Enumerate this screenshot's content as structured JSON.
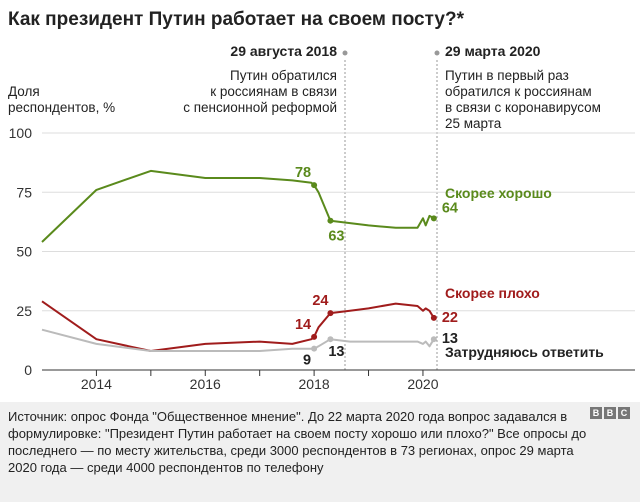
{
  "title": "Как президент Путин работает на своем посту?*",
  "ylabel_lines": [
    "Доля",
    "респондентов, %"
  ],
  "annotations": [
    {
      "date": "29 августа 2018",
      "lines": [
        "Путин обратился",
        "к россиянам в связи",
        "с пенсионной реформой"
      ]
    },
    {
      "date": "29 марта 2020",
      "lines": [
        "Путин в первый раз",
        "обратился к россиянам",
        "в связи с коронавирусом",
        "25 марта"
      ]
    }
  ],
  "chart_data": {
    "type": "line",
    "title": "Как президент Путин работает на своем посту?*",
    "ylabel": "Доля респондентов, %",
    "ylim": [
      0,
      100
    ],
    "yticks": [
      0,
      25,
      50,
      75,
      100
    ],
    "xlim": [
      2013.0,
      2020.35
    ],
    "xticks": [
      {
        "value": 2014,
        "label": "2014"
      },
      {
        "value": 2016,
        "label": "2016"
      },
      {
        "value": 2018,
        "label": "2018"
      },
      {
        "value": 2020,
        "label": "2020"
      }
    ],
    "grid": "horizontal",
    "legend": "series labels at right end",
    "series": [
      {
        "name": "Скорее хорошо",
        "color": "#5a8a1c",
        "x": [
          2013.0,
          2014.0,
          2015.0,
          2016.0,
          2017.0,
          2017.6,
          2017.95,
          2018.0,
          2018.08,
          2018.3,
          2018.66,
          2019.0,
          2019.5,
          2019.9,
          2020.0,
          2020.05,
          2020.12,
          2020.2
        ],
        "values": [
          54,
          76,
          84,
          81,
          81,
          80,
          79,
          78,
          75,
          63,
          62,
          61,
          60,
          60,
          64,
          61,
          65,
          64
        ],
        "labels": [
          {
            "x": 2018.0,
            "value": 78,
            "text": "78"
          },
          {
            "x": 2018.3,
            "value": 63,
            "text": "63"
          },
          {
            "x": 2020.2,
            "value": 64,
            "text": "64"
          }
        ]
      },
      {
        "name": "Скорее плохо",
        "color": "#a01c1c",
        "x": [
          2013.0,
          2014.0,
          2015.0,
          2016.0,
          2017.0,
          2017.6,
          2017.95,
          2018.0,
          2018.08,
          2018.3,
          2018.66,
          2019.0,
          2019.5,
          2019.9,
          2020.0,
          2020.05,
          2020.12,
          2020.2
        ],
        "values": [
          29,
          13,
          8,
          11,
          12,
          11,
          13,
          14,
          18,
          24,
          25,
          26,
          28,
          27,
          25,
          26,
          25,
          22
        ],
        "labels": [
          {
            "x": 2018.0,
            "value": 14,
            "text": "14"
          },
          {
            "x": 2018.3,
            "value": 24,
            "text": "24"
          },
          {
            "x": 2020.2,
            "value": 22,
            "text": "22"
          }
        ]
      },
      {
        "name": "Затрудняюсь ответить",
        "color": "#bbbbbb",
        "x": [
          2013.0,
          2014.0,
          2015.0,
          2016.0,
          2017.0,
          2017.6,
          2017.95,
          2018.0,
          2018.08,
          2018.3,
          2018.66,
          2019.0,
          2019.5,
          2019.9,
          2020.0,
          2020.05,
          2020.12,
          2020.2
        ],
        "values": [
          17,
          11,
          8,
          8,
          8,
          9,
          9,
          9,
          10,
          13,
          12,
          12,
          12,
          12,
          11,
          12,
          10,
          13
        ],
        "labels": [
          {
            "x": 2018.0,
            "value": 9,
            "text": "9"
          },
          {
            "x": 2018.3,
            "value": 13,
            "text": "13"
          },
          {
            "x": 2020.2,
            "value": 13,
            "text": "13"
          }
        ]
      }
    ]
  },
  "source_text": "Источник: опрос Фонда \"Общественное мнение\". До 22 марта 2020 года вопрос задавался в формулировке: \"Президент Путин работает на своем посту хорошо или плохо?\" Все опросы до последнего — по месту жительства, среди 3000 респондентов в 73 регионах, опрос 29 марта 2020 года — среди 4000 респондентов по телефону",
  "logo_letters": [
    "B",
    "B",
    "C"
  ]
}
